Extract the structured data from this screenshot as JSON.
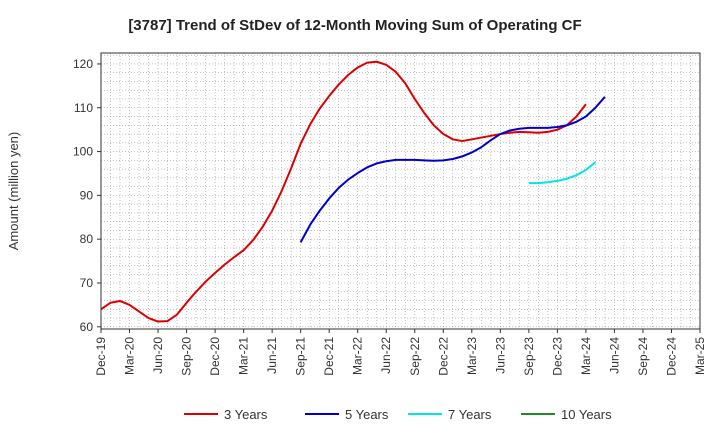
{
  "chart_data": {
    "type": "line",
    "title": "[3787]  Trend of StDev of 12-Month Moving Sum of Operating CF",
    "ylabel": "Amount (million yen)",
    "xlabel": "",
    "ylim": [
      59.5,
      122.5
    ],
    "yticks": [
      60,
      70,
      80,
      90,
      100,
      110,
      120
    ],
    "x_ticks": [
      "Dec-19",
      "Mar-20",
      "Jun-20",
      "Sep-20",
      "Dec-20",
      "Mar-21",
      "Jun-21",
      "Sep-21",
      "Dec-21",
      "Mar-22",
      "Jun-22",
      "Sep-22",
      "Dec-22",
      "Mar-23",
      "Jun-23",
      "Sep-23",
      "Dec-23",
      "Mar-24",
      "Jun-24",
      "Sep-24",
      "Dec-24",
      "Mar-25"
    ],
    "grid": true,
    "legend_position": "bottom",
    "series": [
      {
        "name": "3 Years",
        "color": "#dd0000",
        "start_index": 0,
        "values": [
          64.0,
          65.5,
          65.9,
          65.0,
          63.5,
          62.0,
          61.2,
          61.3,
          62.8,
          65.5,
          68.0,
          70.3,
          72.3,
          74.2,
          75.9,
          77.5,
          79.8,
          82.8,
          86.5,
          91.0,
          96.2,
          101.8,
          106.2,
          109.8,
          112.7,
          115.3,
          117.5,
          119.2,
          120.3,
          120.5,
          119.8,
          118.2,
          115.6,
          112.0,
          108.8,
          106.0,
          104.0,
          102.8,
          102.4,
          102.8,
          103.2,
          103.6,
          104.0,
          104.3,
          104.5,
          104.4,
          104.3,
          104.5,
          105.0,
          106.0,
          108.0,
          110.8
        ]
      },
      {
        "name": "5 Years",
        "color": "#0000cc",
        "start_index": 21,
        "values": [
          79.3,
          83.3,
          86.5,
          89.3,
          91.7,
          93.6,
          95.1,
          96.4,
          97.3,
          97.8,
          98.1,
          98.1,
          98.1,
          98.0,
          97.9,
          98.0,
          98.3,
          98.9,
          99.8,
          101.0,
          102.6,
          104.0,
          104.8,
          105.2,
          105.4,
          105.4,
          105.4,
          105.6,
          106.0,
          106.8,
          108.0,
          110.0,
          112.5
        ]
      },
      {
        "name": "7 Years",
        "color": "#00e5e5",
        "start_index": 45,
        "values": [
          92.8,
          92.8,
          93.0,
          93.3,
          93.8,
          94.6,
          95.8,
          97.6
        ]
      },
      {
        "name": "10 Years",
        "color": "#228b22",
        "start_index": 0,
        "values": []
      }
    ]
  }
}
